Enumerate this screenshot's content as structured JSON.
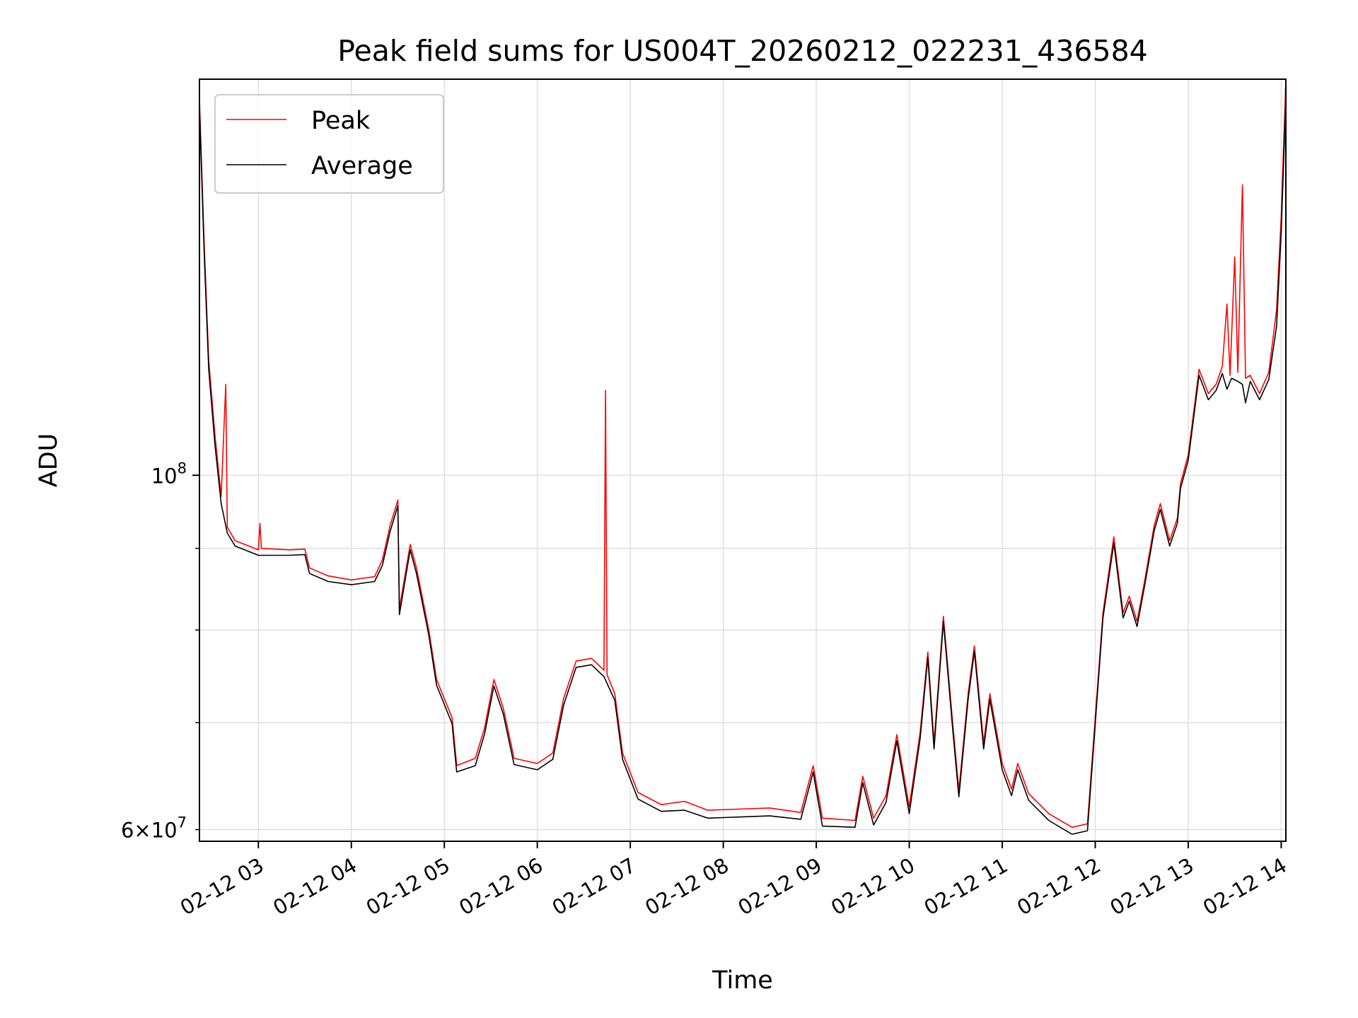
{
  "chart_data": {
    "type": "line",
    "title": "Peak field sums for US004T_20260212_022231_436584",
    "xlabel": "Time",
    "ylabel": "ADU",
    "y_scale": "log",
    "ylim": [
      59000000,
      177000000
    ],
    "xlim": [
      "2026-02-12 02:22",
      "2026-02-12 14:03"
    ],
    "x_ticks": [
      "2026-02-12 03:00",
      "2026-02-12 04:00",
      "2026-02-12 05:00",
      "2026-02-12 06:00",
      "2026-02-12 07:00",
      "2026-02-12 08:00",
      "2026-02-12 09:00",
      "2026-02-12 10:00",
      "2026-02-12 11:00",
      "2026-02-12 12:00",
      "2026-02-12 13:00",
      "2026-02-12 14:00"
    ],
    "x_tick_labels": [
      "02-12 03",
      "02-12 04",
      "02-12 05",
      "02-12 06",
      "02-12 07",
      "02-12 08",
      "02-12 09",
      "02-12 10",
      "02-12 11",
      "02-12 12",
      "02-12 13",
      "02-12 14"
    ],
    "y_major_ticks": [
      {
        "value": 100000000,
        "base": "10",
        "exp": "8"
      }
    ],
    "y_minor_ticks": [
      {
        "value": 60000000,
        "label": "6×10",
        "exp": "7"
      },
      {
        "value": 70000000,
        "label": ""
      },
      {
        "value": 80000000,
        "label": ""
      },
      {
        "value": 90000000,
        "label": ""
      }
    ],
    "grid": true,
    "legend_position": "top-left",
    "series": [
      {
        "name": "Peak",
        "color": "#ff0000",
        "points": [
          [
            "2026-02-12 02:22",
            172000000
          ],
          [
            "2026-02-12 02:25",
            140000000
          ],
          [
            "2026-02-12 02:28",
            118000000
          ],
          [
            "2026-02-12 02:32",
            106000000
          ],
          [
            "2026-02-12 02:36",
            97000000
          ],
          [
            "2026-02-12 02:39",
            114000000
          ],
          [
            "2026-02-12 02:40",
            92800000
          ],
          [
            "2026-02-12 02:45",
            91000000
          ],
          [
            "2026-02-12 03:00",
            89800000
          ],
          [
            "2026-02-12 03:01",
            93300000
          ],
          [
            "2026-02-12 03:02",
            90000000
          ],
          [
            "2026-02-12 03:20",
            89800000
          ],
          [
            "2026-02-12 03:30",
            89900000
          ],
          [
            "2026-02-12 03:33",
            87500000
          ],
          [
            "2026-02-12 03:45",
            86500000
          ],
          [
            "2026-02-12 04:00",
            86000000
          ],
          [
            "2026-02-12 04:15",
            86400000
          ],
          [
            "2026-02-12 04:20",
            88500000
          ],
          [
            "2026-02-12 04:25",
            93000000
          ],
          [
            "2026-02-12 04:30",
            96500000
          ],
          [
            "2026-02-12 04:31",
            82500000
          ],
          [
            "2026-02-12 04:35",
            87000000
          ],
          [
            "2026-02-12 04:38",
            90500000
          ],
          [
            "2026-02-12 04:42",
            87500000
          ],
          [
            "2026-02-12 04:50",
            80000000
          ],
          [
            "2026-02-12 04:55",
            74500000
          ],
          [
            "2026-02-12 05:05",
            70500000
          ],
          [
            "2026-02-12 05:08",
            65800000
          ],
          [
            "2026-02-12 05:20",
            66500000
          ],
          [
            "2026-02-12 05:26",
            69500000
          ],
          [
            "2026-02-12 05:32",
            74500000
          ],
          [
            "2026-02-12 05:38",
            71500000
          ],
          [
            "2026-02-12 05:45",
            66500000
          ],
          [
            "2026-02-12 06:00",
            66000000
          ],
          [
            "2026-02-12 06:10",
            67000000
          ],
          [
            "2026-02-12 06:17",
            72500000
          ],
          [
            "2026-02-12 06:25",
            76500000
          ],
          [
            "2026-02-12 06:35",
            76800000
          ],
          [
            "2026-02-12 06:43",
            75500000
          ],
          [
            "2026-02-12 06:44",
            113000000
          ],
          [
            "2026-02-12 06:45",
            75000000
          ],
          [
            "2026-02-12 06:50",
            73000000
          ],
          [
            "2026-02-12 06:55",
            67000000
          ],
          [
            "2026-02-12 07:05",
            63300000
          ],
          [
            "2026-02-12 07:20",
            62200000
          ],
          [
            "2026-02-12 07:35",
            62500000
          ],
          [
            "2026-02-12 07:50",
            61700000
          ],
          [
            "2026-02-12 08:10",
            61800000
          ],
          [
            "2026-02-12 08:30",
            61900000
          ],
          [
            "2026-02-12 08:50",
            61500000
          ],
          [
            "2026-02-12 08:58",
            65800000
          ],
          [
            "2026-02-12 09:04",
            61000000
          ],
          [
            "2026-02-12 09:25",
            60800000
          ],
          [
            "2026-02-12 09:30",
            64800000
          ],
          [
            "2026-02-12 09:37",
            61000000
          ],
          [
            "2026-02-12 09:45",
            63000000
          ],
          [
            "2026-02-12 09:52",
            68800000
          ],
          [
            "2026-02-12 10:00",
            62000000
          ],
          [
            "2026-02-12 10:07",
            69000000
          ],
          [
            "2026-02-12 10:12",
            77500000
          ],
          [
            "2026-02-12 10:16",
            68000000
          ],
          [
            "2026-02-12 10:22",
            81600000
          ],
          [
            "2026-02-12 10:28",
            70000000
          ],
          [
            "2026-02-12 10:32",
            63500000
          ],
          [
            "2026-02-12 10:38",
            73000000
          ],
          [
            "2026-02-12 10:42",
            78200000
          ],
          [
            "2026-02-12 10:48",
            68000000
          ],
          [
            "2026-02-12 10:52",
            73000000
          ],
          [
            "2026-02-12 11:00",
            66000000
          ],
          [
            "2026-02-12 11:06",
            63600000
          ],
          [
            "2026-02-12 11:10",
            66000000
          ],
          [
            "2026-02-12 11:17",
            63200000
          ],
          [
            "2026-02-12 11:30",
            61400000
          ],
          [
            "2026-02-12 11:45",
            60200000
          ],
          [
            "2026-02-12 11:55",
            60500000
          ],
          [
            "2026-02-12 12:00",
            70500000
          ],
          [
            "2026-02-12 12:05",
            82000000
          ],
          [
            "2026-02-12 12:12",
            91500000
          ],
          [
            "2026-02-12 12:18",
            82000000
          ],
          [
            "2026-02-12 12:22",
            84000000
          ],
          [
            "2026-02-12 12:27",
            81000000
          ],
          [
            "2026-02-12 12:32",
            86000000
          ],
          [
            "2026-02-12 12:38",
            93000000
          ],
          [
            "2026-02-12 12:42",
            96000000
          ],
          [
            "2026-02-12 12:48",
            91000000
          ],
          [
            "2026-02-12 12:53",
            94000000
          ],
          [
            "2026-02-12 12:55",
            98800000
          ],
          [
            "2026-02-12 13:00",
            103000000
          ],
          [
            "2026-02-12 13:07",
            116500000
          ],
          [
            "2026-02-12 13:13",
            112500000
          ],
          [
            "2026-02-12 13:18",
            114000000
          ],
          [
            "2026-02-12 13:22",
            117000000
          ],
          [
            "2026-02-12 13:25",
            128000000
          ],
          [
            "2026-02-12 13:27",
            115500000
          ],
          [
            "2026-02-12 13:30",
            137000000
          ],
          [
            "2026-02-12 13:32",
            116000000
          ],
          [
            "2026-02-12 13:35",
            152000000
          ],
          [
            "2026-02-12 13:37",
            115000000
          ],
          [
            "2026-02-12 13:40",
            115500000
          ],
          [
            "2026-02-12 13:46",
            112500000
          ],
          [
            "2026-02-12 13:52",
            116000000
          ],
          [
            "2026-02-12 13:57",
            127000000
          ],
          [
            "2026-02-12 14:00",
            145000000
          ],
          [
            "2026-02-12 14:03",
            177000000
          ]
        ]
      },
      {
        "name": "Average",
        "color": "#000000",
        "points": [
          [
            "2026-02-12 02:22",
            170000000
          ],
          [
            "2026-02-12 02:25",
            138000000
          ],
          [
            "2026-02-12 02:28",
            116500000
          ],
          [
            "2026-02-12 02:32",
            104500000
          ],
          [
            "2026-02-12 02:36",
            96000000
          ],
          [
            "2026-02-12 02:40",
            92000000
          ],
          [
            "2026-02-12 02:45",
            90300000
          ],
          [
            "2026-02-12 03:00",
            89100000
          ],
          [
            "2026-02-12 03:20",
            89100000
          ],
          [
            "2026-02-12 03:30",
            89200000
          ],
          [
            "2026-02-12 03:33",
            86800000
          ],
          [
            "2026-02-12 03:45",
            85800000
          ],
          [
            "2026-02-12 04:00",
            85400000
          ],
          [
            "2026-02-12 04:15",
            85800000
          ],
          [
            "2026-02-12 04:20",
            87800000
          ],
          [
            "2026-02-12 04:25",
            92200000
          ],
          [
            "2026-02-12 04:30",
            95700000
          ],
          [
            "2026-02-12 04:31",
            81800000
          ],
          [
            "2026-02-12 04:35",
            86300000
          ],
          [
            "2026-02-12 04:38",
            89800000
          ],
          [
            "2026-02-12 04:42",
            86800000
          ],
          [
            "2026-02-12 04:50",
            79400000
          ],
          [
            "2026-02-12 04:55",
            73900000
          ],
          [
            "2026-02-12 05:05",
            69900000
          ],
          [
            "2026-02-12 05:08",
            65200000
          ],
          [
            "2026-02-12 05:20",
            65800000
          ],
          [
            "2026-02-12 05:26",
            68900000
          ],
          [
            "2026-02-12 05:32",
            73800000
          ],
          [
            "2026-02-12 05:38",
            70900000
          ],
          [
            "2026-02-12 05:45",
            65900000
          ],
          [
            "2026-02-12 06:00",
            65400000
          ],
          [
            "2026-02-12 06:10",
            66400000
          ],
          [
            "2026-02-12 06:17",
            71800000
          ],
          [
            "2026-02-12 06:25",
            75800000
          ],
          [
            "2026-02-12 06:35",
            76100000
          ],
          [
            "2026-02-12 06:43",
            74800000
          ],
          [
            "2026-02-12 06:50",
            72300000
          ],
          [
            "2026-02-12 06:55",
            66400000
          ],
          [
            "2026-02-12 07:05",
            62700000
          ],
          [
            "2026-02-12 07:20",
            61600000
          ],
          [
            "2026-02-12 07:35",
            61700000
          ],
          [
            "2026-02-12 07:50",
            61000000
          ],
          [
            "2026-02-12 08:10",
            61100000
          ],
          [
            "2026-02-12 08:30",
            61200000
          ],
          [
            "2026-02-12 08:50",
            60900000
          ],
          [
            "2026-02-12 08:58",
            65200000
          ],
          [
            "2026-02-12 09:04",
            60300000
          ],
          [
            "2026-02-12 09:25",
            60200000
          ],
          [
            "2026-02-12 09:30",
            64200000
          ],
          [
            "2026-02-12 09:37",
            60400000
          ],
          [
            "2026-02-12 09:45",
            62400000
          ],
          [
            "2026-02-12 09:52",
            68200000
          ],
          [
            "2026-02-12 10:00",
            61400000
          ],
          [
            "2026-02-12 10:07",
            68400000
          ],
          [
            "2026-02-12 10:12",
            76900000
          ],
          [
            "2026-02-12 10:16",
            67400000
          ],
          [
            "2026-02-12 10:22",
            81000000
          ],
          [
            "2026-02-12 10:28",
            69400000
          ],
          [
            "2026-02-12 10:32",
            62900000
          ],
          [
            "2026-02-12 10:38",
            72400000
          ],
          [
            "2026-02-12 10:42",
            77600000
          ],
          [
            "2026-02-12 10:48",
            67400000
          ],
          [
            "2026-02-12 10:52",
            72400000
          ],
          [
            "2026-02-12 11:00",
            65400000
          ],
          [
            "2026-02-12 11:06",
            63000000
          ],
          [
            "2026-02-12 11:10",
            65400000
          ],
          [
            "2026-02-12 11:17",
            62600000
          ],
          [
            "2026-02-12 11:30",
            60800000
          ],
          [
            "2026-02-12 11:45",
            59600000
          ],
          [
            "2026-02-12 11:55",
            59900000
          ],
          [
            "2026-02-12 12:00",
            69900000
          ],
          [
            "2026-02-12 12:05",
            81400000
          ],
          [
            "2026-02-12 12:12",
            90700000
          ],
          [
            "2026-02-12 12:18",
            81400000
          ],
          [
            "2026-02-12 12:22",
            83400000
          ],
          [
            "2026-02-12 12:27",
            80400000
          ],
          [
            "2026-02-12 12:32",
            85400000
          ],
          [
            "2026-02-12 12:38",
            92300000
          ],
          [
            "2026-02-12 12:42",
            95200000
          ],
          [
            "2026-02-12 12:48",
            90300000
          ],
          [
            "2026-02-12 12:53",
            93300000
          ],
          [
            "2026-02-12 12:55",
            98100000
          ],
          [
            "2026-02-12 13:00",
            102200000
          ],
          [
            "2026-02-12 13:07",
            115500000
          ],
          [
            "2026-02-12 13:13",
            111500000
          ],
          [
            "2026-02-12 13:18",
            113000000
          ],
          [
            "2026-02-12 13:22",
            115800000
          ],
          [
            "2026-02-12 13:25",
            113200000
          ],
          [
            "2026-02-12 13:28",
            115000000
          ],
          [
            "2026-02-12 13:32",
            114500000
          ],
          [
            "2026-02-12 13:35",
            114000000
          ],
          [
            "2026-02-12 13:37",
            111000000
          ],
          [
            "2026-02-12 13:40",
            114500000
          ],
          [
            "2026-02-12 13:46",
            111500000
          ],
          [
            "2026-02-12 13:52",
            114800000
          ],
          [
            "2026-02-12 13:57",
            124000000
          ],
          [
            "2026-02-12 14:00",
            142000000
          ],
          [
            "2026-02-12 14:03",
            172000000
          ]
        ]
      }
    ]
  }
}
